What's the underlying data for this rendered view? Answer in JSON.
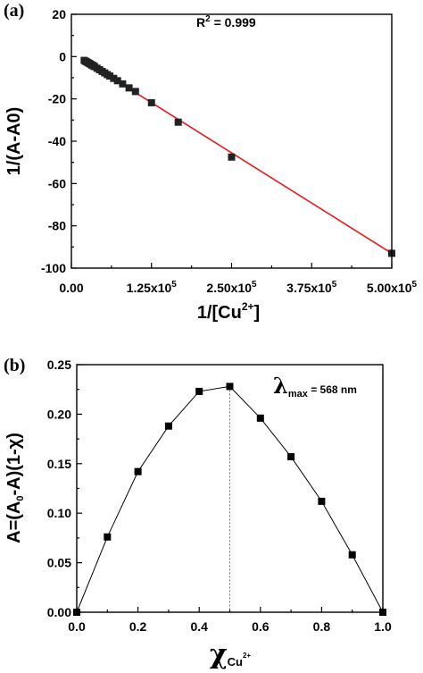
{
  "chart_data": [
    {
      "type": "scatter",
      "panel_label": "(a)",
      "annotation": {
        "prefix": "R",
        "sup": "2",
        "suffix": " = 0.999"
      },
      "xlabel": {
        "prefix": "1/[Cu",
        "sup": "2+",
        "suffix": "]"
      },
      "ylabel": "1/(A-A0)",
      "xlim": [
        0,
        500000
      ],
      "ylim": [
        -100,
        20
      ],
      "x_ticks": [
        0,
        125000,
        250000,
        375000,
        500000
      ],
      "x_tick_labels": [
        "0.00",
        "1.25x10",
        "2.50x10",
        "3.75x10",
        "5.00x10"
      ],
      "x_tick_exponent": "5",
      "y_ticks": [
        20,
        0,
        -20,
        -40,
        -60,
        -80,
        -100
      ],
      "y_tick_labels": [
        "20",
        "0",
        "-20",
        "-40",
        "-60",
        "-80",
        "-100"
      ],
      "marker_color": "#222222",
      "fit_color": "#e8191c",
      "fit_line": {
        "x": [
          20000,
          500000
        ],
        "y": [
          -1.8,
          -93.0
        ]
      },
      "series": [
        {
          "x": [
            20000,
            22000,
            24000,
            26000,
            28000,
            30000,
            32000,
            34000,
            36000,
            40000,
            44000,
            48000,
            52000,
            56000,
            60000,
            66000,
            72000,
            80000,
            90000,
            100000,
            125000,
            166700,
            250000,
            500000
          ],
          "y": [
            -1.8,
            -2.2,
            -2.5,
            -2.9,
            -3.2,
            -3.6,
            -4.0,
            -4.3,
            -4.7,
            -5.5,
            -6.2,
            -7.0,
            -7.7,
            -8.5,
            -9.2,
            -10.3,
            -11.4,
            -12.9,
            -14.8,
            -16.5,
            -21.8,
            -31.0,
            -47.5,
            -93.0
          ]
        }
      ]
    },
    {
      "type": "line",
      "panel_label": "(b)",
      "annotation": {
        "symbol": "λ",
        "sub": "max",
        "suffix": " = 568 nm"
      },
      "xlabel": {
        "symbol": "χ",
        "sub": "Cu",
        "subsup": "2+"
      },
      "ylabel": {
        "p1": "A=(A",
        "sub": "0",
        "p2": "-A)(1-χ)"
      },
      "xlim": [
        0,
        1.0
      ],
      "ylim": [
        0,
        0.25
      ],
      "x_ticks": [
        0,
        0.2,
        0.4,
        0.6,
        0.8,
        1.0
      ],
      "x_tick_labels": [
        "0.0",
        "0.2",
        "0.4",
        "0.6",
        "0.8",
        "1.0"
      ],
      "y_ticks": [
        0,
        0.05,
        0.1,
        0.15,
        0.2,
        0.25
      ],
      "y_tick_labels": [
        "0.00",
        "0.05",
        "0.10",
        "0.15",
        "0.20",
        "0.25"
      ],
      "marker_color": "#000000",
      "vline_x": 0.5,
      "series": [
        {
          "x": [
            0.0,
            0.1,
            0.2,
            0.3,
            0.4,
            0.5,
            0.6,
            0.7,
            0.8,
            0.9,
            1.0
          ],
          "y": [
            0.0,
            0.076,
            0.142,
            0.188,
            0.223,
            0.228,
            0.196,
            0.157,
            0.112,
            0.058,
            0.0
          ]
        }
      ]
    }
  ]
}
